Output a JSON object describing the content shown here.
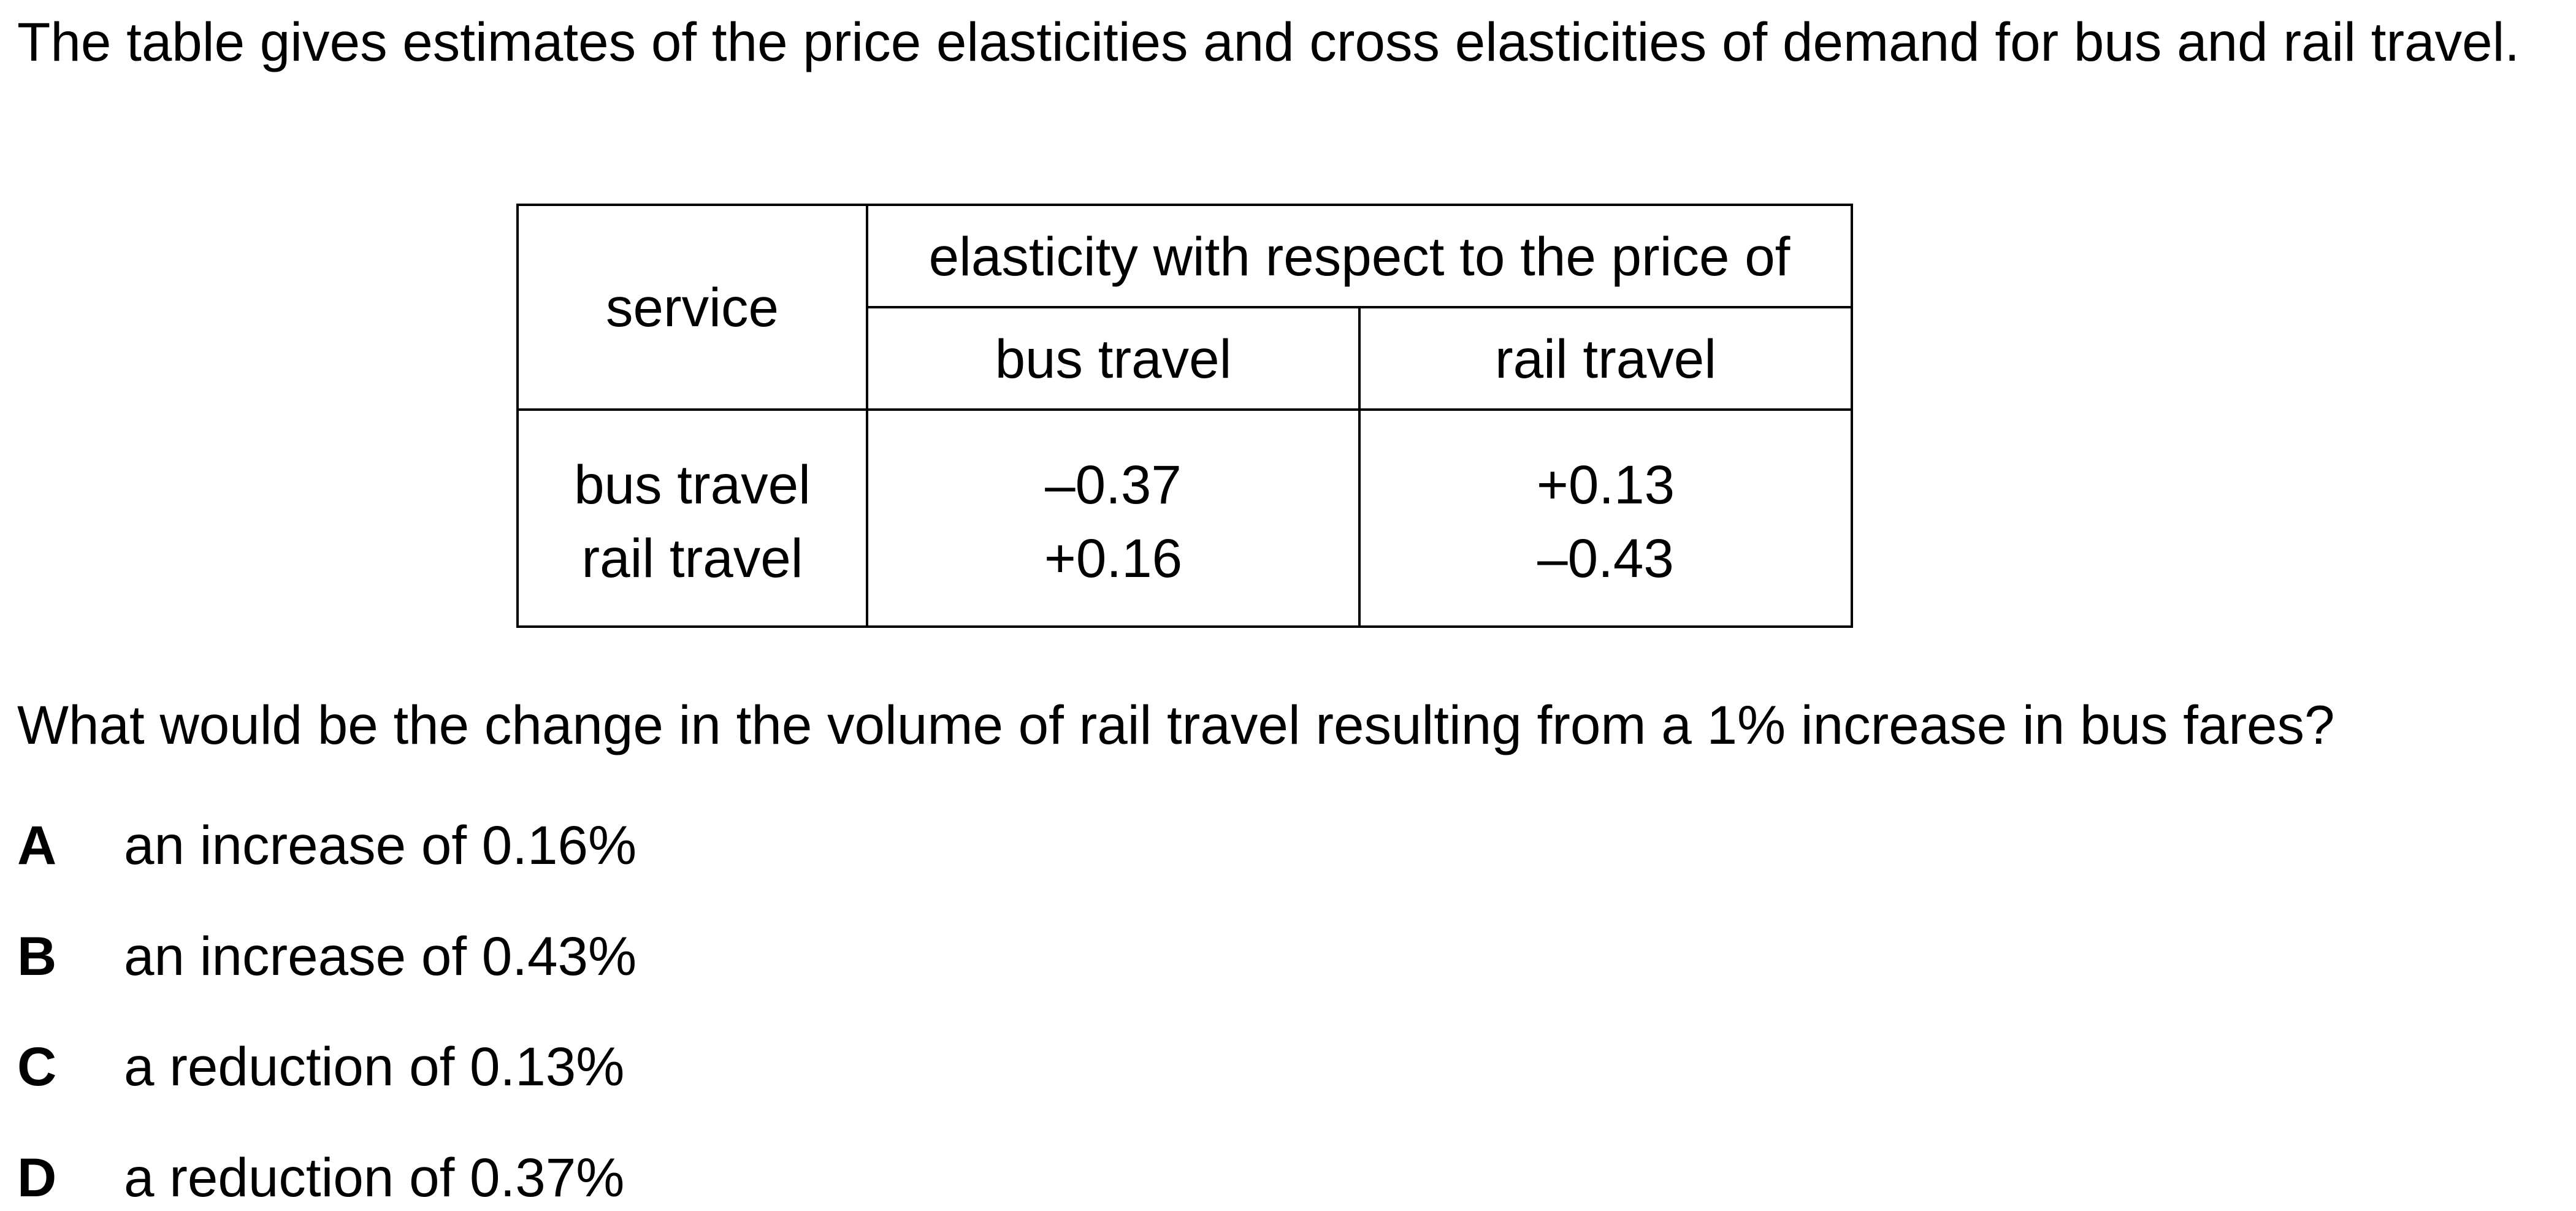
{
  "intro": "The table gives estimates of the price elasticities and cross elasticities of demand for bus and rail travel.",
  "table": {
    "service_header": "service",
    "span_header": "elasticity with respect to the price of",
    "sub_headers": [
      "bus travel",
      "rail travel"
    ],
    "rows": [
      {
        "service": "bus travel",
        "values": [
          "–0.37",
          "+0.13"
        ]
      },
      {
        "service": "rail travel",
        "values": [
          "+0.16",
          "–0.43"
        ]
      }
    ]
  },
  "question": "What would be the change in the volume of rail travel resulting from a 1% increase in bus fares?",
  "options": [
    {
      "letter": "A",
      "text": "an increase of 0.16%"
    },
    {
      "letter": "B",
      "text": "an increase of 0.43%"
    },
    {
      "letter": "C",
      "text": "a reduction of 0.13%"
    },
    {
      "letter": "D",
      "text": "a reduction of 0.37%"
    }
  ]
}
